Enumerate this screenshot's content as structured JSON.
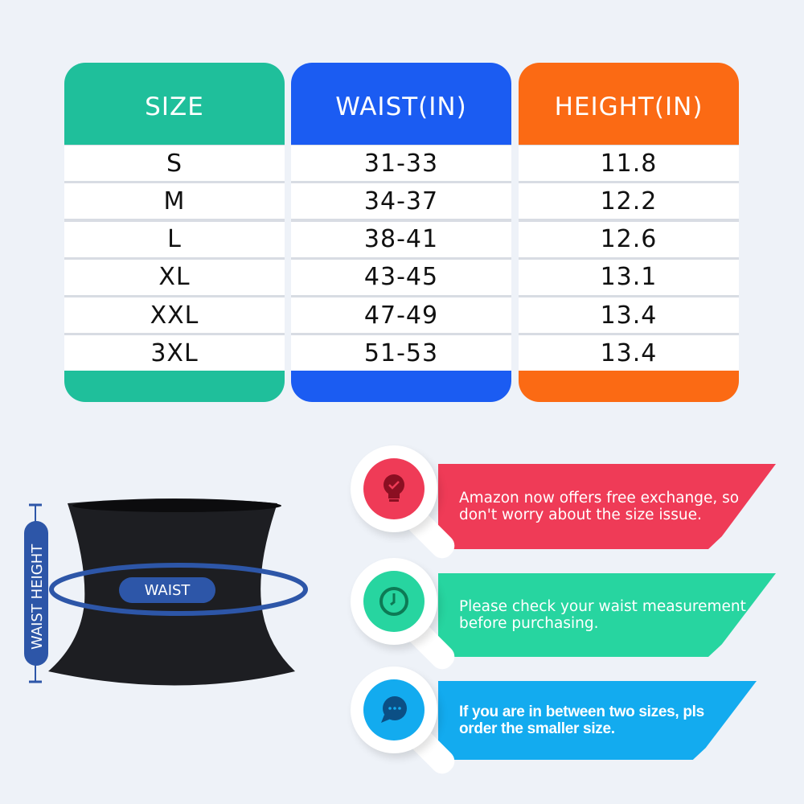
{
  "table": {
    "columns": [
      {
        "header": "SIZE",
        "color": "#1fbf9b",
        "values": [
          "S",
          "M",
          "L",
          "XL",
          "XXL",
          "3XL"
        ]
      },
      {
        "header": "WAIST(IN)",
        "color": "#1b5cf2",
        "values": [
          "31-33",
          "34-37",
          "38-41",
          "43-45",
          "47-49",
          "51-53"
        ]
      },
      {
        "header": "HEIGHT(IN)",
        "color": "#fb6a14",
        "values": [
          "11.8",
          "12.2",
          "12.6",
          "13.1",
          "13.4",
          "13.4"
        ]
      }
    ]
  },
  "diagram": {
    "waist_label": "WAIST",
    "height_label": "WAIST HEIGHT",
    "accent": "#2d56a8"
  },
  "tips": [
    {
      "text": "Amazon now offers free exchange, so don't worry about the size issue.",
      "icon": "lightbulb-check-icon",
      "color": "#ef3b57"
    },
    {
      "text": "Please check your waist measurement before purchasing.",
      "icon": "clock-icon",
      "color": "#27d5a0"
    },
    {
      "text": "If you are in between two sizes, pls order the smaller size.",
      "icon": "chat-bubble-icon",
      "color": "#13abef"
    }
  ]
}
